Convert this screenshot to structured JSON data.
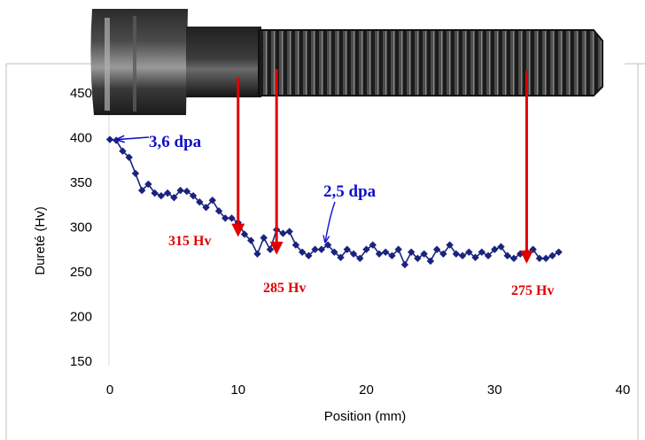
{
  "chart_data": {
    "type": "scatter",
    "xlabel": "Position (mm)",
    "ylabel": "Dureté (Hv)",
    "xlim": [
      0,
      40
    ],
    "ylim": [
      150,
      450
    ],
    "x_ticks": [
      "0",
      "10",
      "20",
      "30",
      "40"
    ],
    "y_ticks": [
      "150",
      "200",
      "250",
      "300",
      "350",
      "400",
      "450"
    ],
    "grid": false,
    "legend": "none",
    "series": [
      {
        "color": "#1a237e",
        "marker": "diamond",
        "connected": true,
        "x": [
          0,
          0.5,
          1.0,
          1.5,
          2.0,
          2.5,
          3.0,
          3.5,
          4.0,
          4.5,
          5.0,
          5.5,
          6.0,
          6.5,
          7.0,
          7.5,
          8.0,
          8.5,
          9.0,
          9.5,
          10.0,
          10.5,
          11.0,
          11.5,
          12.0,
          12.5,
          13.0,
          13.5,
          14.0,
          14.5,
          15.0,
          15.5,
          16.0,
          16.5,
          17.0,
          17.5,
          18.0,
          18.5,
          19.0,
          19.5,
          20.0,
          20.5,
          21.0,
          21.5,
          22.0,
          22.5,
          23.0,
          23.5,
          24.0,
          24.5,
          25.0,
          25.5,
          26.0,
          26.5,
          27.0,
          27.5,
          28.0,
          28.5,
          29.0,
          29.5,
          30.0,
          30.5,
          31.0,
          31.5,
          32.0,
          32.5,
          33.0,
          33.5,
          34.0,
          34.5,
          35.0
        ],
        "y": [
          398,
          397,
          385,
          378,
          360,
          341,
          348,
          338,
          335,
          338,
          333,
          341,
          340,
          335,
          328,
          322,
          330,
          318,
          310,
          310,
          305,
          292,
          285,
          270,
          288,
          275,
          297,
          293,
          295,
          280,
          272,
          268,
          275,
          275,
          280,
          272,
          266,
          275,
          270,
          265,
          275,
          280,
          270,
          272,
          268,
          275,
          258,
          272,
          265,
          270,
          262,
          275,
          270,
          280,
          270,
          268,
          272,
          266,
          272,
          268,
          275,
          278,
          268,
          265,
          270,
          272,
          275,
          265,
          265,
          268,
          272
        ]
      }
    ],
    "annotations": {
      "dose_high": "3,6 dpa",
      "dose_low": "2,5 dpa",
      "hv_1": "315 Hv",
      "hv_2": "285 Hv",
      "hv_3": "275 Hv"
    },
    "red_arrows": [
      {
        "x": 10.0,
        "hv": "315 Hv"
      },
      {
        "x": 13.0,
        "hv": "285 Hv"
      },
      {
        "x": 32.5,
        "hv": "275 Hv"
      }
    ]
  },
  "colors": {
    "series": "#1a237e",
    "dose_annotation": "#1010c8",
    "hardness_annotation": "#e00000",
    "bolt_dark": "#151515"
  },
  "bolt_photo": {
    "icon": "threaded-bolt-photo"
  }
}
